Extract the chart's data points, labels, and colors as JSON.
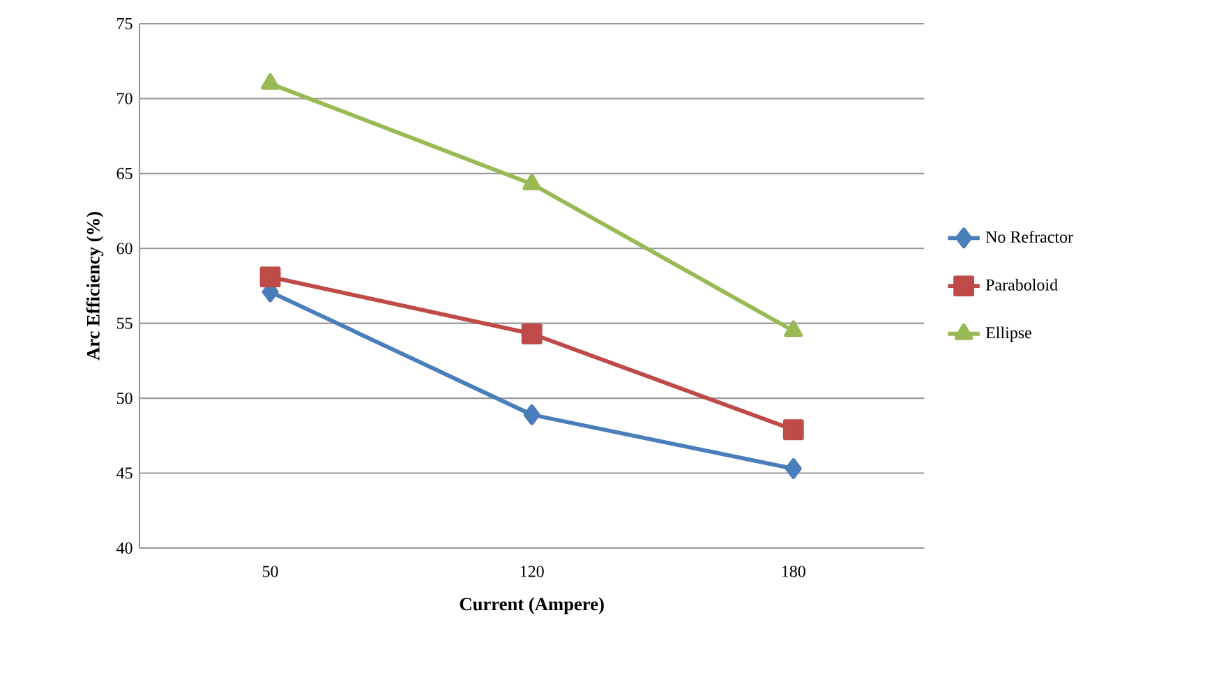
{
  "chart_data": {
    "type": "line",
    "xlabel": "Current (Ampere)",
    "ylabel": "Arc Efficiency (%)",
    "categories": [
      "50",
      "120",
      "180"
    ],
    "series": [
      {
        "name": "No Refractor",
        "color": "#4a7ebb",
        "marker": "diamond",
        "values": [
          57.1,
          48.9,
          45.3
        ]
      },
      {
        "name": "Paraboloid",
        "color": "#be4b48",
        "marker": "square",
        "values": [
          58.1,
          54.3,
          47.9
        ]
      },
      {
        "name": "Ellipse",
        "color": "#98b954",
        "marker": "triangle",
        "values": [
          71.0,
          64.3,
          54.5
        ]
      }
    ],
    "ylim": [
      40,
      75
    ],
    "yticks": [
      40,
      45,
      50,
      55,
      60,
      65,
      70,
      75
    ],
    "grid": "y",
    "legend": "right",
    "line_style": "solid"
  }
}
